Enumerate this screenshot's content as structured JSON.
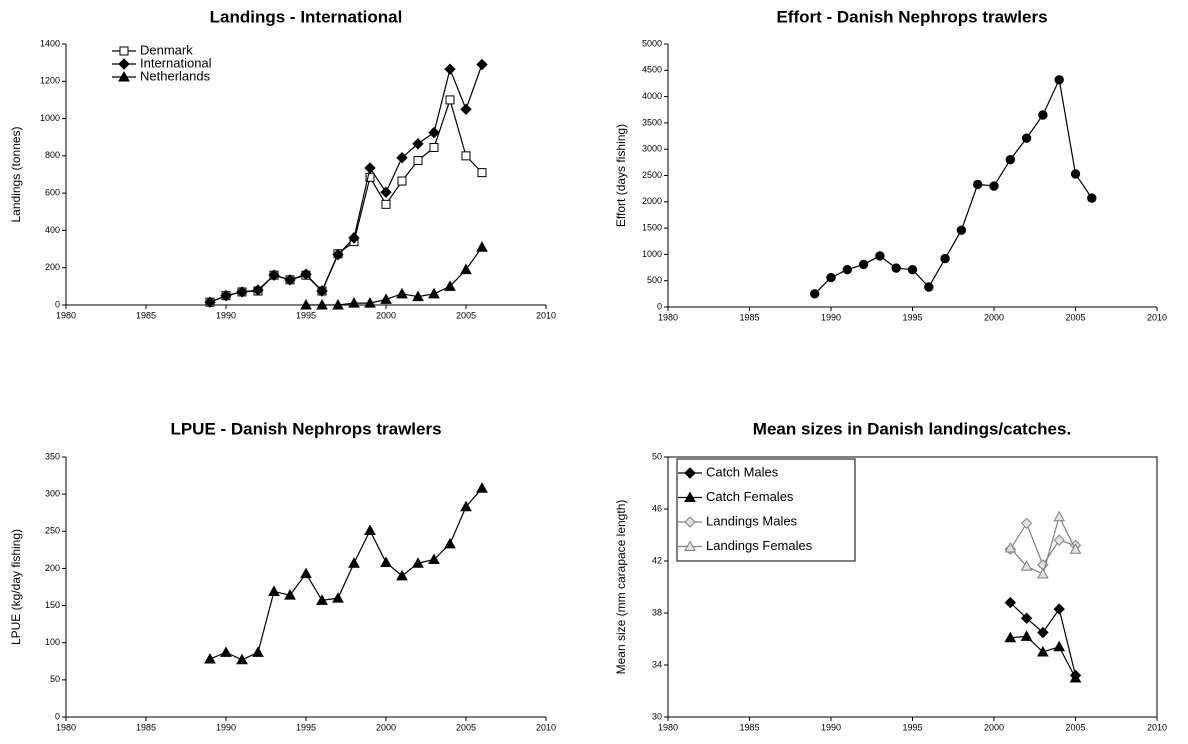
{
  "chart_data": [
    {
      "type": "line",
      "title": "Landings - International",
      "ylabel": "Landings (tonnes)",
      "x": [
        1989,
        1990,
        1991,
        1992,
        1993,
        1994,
        1995,
        1996,
        1997,
        1998,
        1999,
        2000,
        2001,
        2002,
        2003,
        2004,
        2005,
        2006
      ],
      "series": [
        {
          "name": "Denmark",
          "color": "#000000",
          "marker": "square",
          "fill": "#ffffff",
          "values": [
            15,
            50,
            70,
            75,
            160,
            135,
            160,
            75,
            275,
            340,
            685,
            540,
            665,
            775,
            845,
            1100,
            800,
            710
          ]
        },
        {
          "name": "International",
          "color": "#000000",
          "marker": "diamond",
          "fill": "#000000",
          "values": [
            15,
            50,
            70,
            80,
            160,
            135,
            165,
            75,
            270,
            360,
            735,
            605,
            790,
            865,
            925,
            1265,
            1050,
            1290
          ]
        },
        {
          "name": "Netherlands",
          "color": "#000000",
          "marker": "triangle",
          "fill": "#000000",
          "values": [
            null,
            null,
            null,
            null,
            null,
            null,
            0,
            0,
            0,
            10,
            10,
            30,
            60,
            45,
            60,
            100,
            190,
            310
          ]
        }
      ],
      "xlim": [
        1980,
        2010
      ],
      "xticks": [
        1980,
        1985,
        1990,
        1995,
        2000,
        2005,
        2010
      ],
      "ylim": [
        0,
        1400
      ],
      "yticks": [
        0,
        200,
        400,
        600,
        800,
        1000,
        1200,
        1400
      ],
      "legend": "upper left"
    },
    {
      "type": "line",
      "title": "Effort - Danish Nephrops trawlers",
      "ylabel": "Effort (days fishing)",
      "x": [
        1989,
        1990,
        1991,
        1992,
        1993,
        1994,
        1995,
        1996,
        1997,
        1998,
        1999,
        2000,
        2001,
        2002,
        2003,
        2004,
        2005,
        2006
      ],
      "series": [
        {
          "color": "#000000",
          "marker": "circle",
          "fill": "#000000",
          "values": [
            250,
            560,
            710,
            810,
            970,
            740,
            710,
            380,
            920,
            1460,
            2330,
            2300,
            2800,
            3210,
            3650,
            4320,
            2530,
            2070
          ]
        }
      ],
      "xlim": [
        1980,
        2010
      ],
      "xticks": [
        1980,
        1985,
        1990,
        1995,
        2000,
        2005,
        2010
      ],
      "ylim": [
        0,
        5000
      ],
      "yticks": [
        0,
        500,
        1000,
        1500,
        2000,
        2500,
        3000,
        3500,
        4000,
        4500,
        5000
      ]
    },
    {
      "type": "line",
      "title": "LPUE - Danish Nephrops trawlers",
      "ylabel": "LPUE (kg/day fishing)",
      "x": [
        1989,
        1990,
        1991,
        1992,
        1993,
        1994,
        1995,
        1996,
        1997,
        1998,
        1999,
        2000,
        2001,
        2002,
        2003,
        2004,
        2005,
        2006
      ],
      "series": [
        {
          "color": "#000000",
          "marker": "triangle",
          "fill": "#000000",
          "values": [
            78,
            87,
            77,
            87,
            169,
            164,
            193,
            157,
            160,
            207,
            251,
            208,
            190,
            207,
            212,
            233,
            283,
            308
          ]
        }
      ],
      "xlim": [
        1980,
        2010
      ],
      "xticks": [
        1980,
        1985,
        1990,
        1995,
        2000,
        2005,
        2010
      ],
      "ylim": [
        0,
        350
      ],
      "yticks": [
        0,
        50,
        100,
        150,
        200,
        250,
        300,
        350
      ]
    },
    {
      "type": "line",
      "title": "Mean sizes in Danish landings/catches.",
      "ylabel": "Mean size (mm carapace length)",
      "x": [
        2001,
        2002,
        2003,
        2004,
        2005
      ],
      "series": [
        {
          "name": "Catch Males",
          "color": "#000000",
          "marker": "diamond",
          "fill": "#000000",
          "values": [
            38.8,
            37.6,
            36.5,
            38.3,
            33.2
          ]
        },
        {
          "name": "Catch Females",
          "color": "#000000",
          "marker": "triangle",
          "fill": "#000000",
          "values": [
            36.1,
            36.2,
            35.0,
            35.4,
            33.0
          ]
        },
        {
          "name": "Landings Males",
          "color": "#808080",
          "marker": "diamond",
          "fill": "#e0e0e0",
          "values": [
            42.9,
            44.9,
            41.7,
            43.6,
            43.2
          ]
        },
        {
          "name": "Landings Females",
          "color": "#808080",
          "marker": "triangle",
          "fill": "#e0e0e0",
          "values": [
            43.0,
            41.6,
            41.0,
            45.4,
            42.9
          ]
        }
      ],
      "xlim": [
        1980,
        2010
      ],
      "xticks": [
        1980,
        1985,
        1990,
        1995,
        2000,
        2005,
        2010
      ],
      "ylim": [
        30,
        50
      ],
      "yticks": [
        30,
        34,
        38,
        42,
        46,
        50
      ],
      "legend": "upper left",
      "plot_frame": true
    }
  ]
}
